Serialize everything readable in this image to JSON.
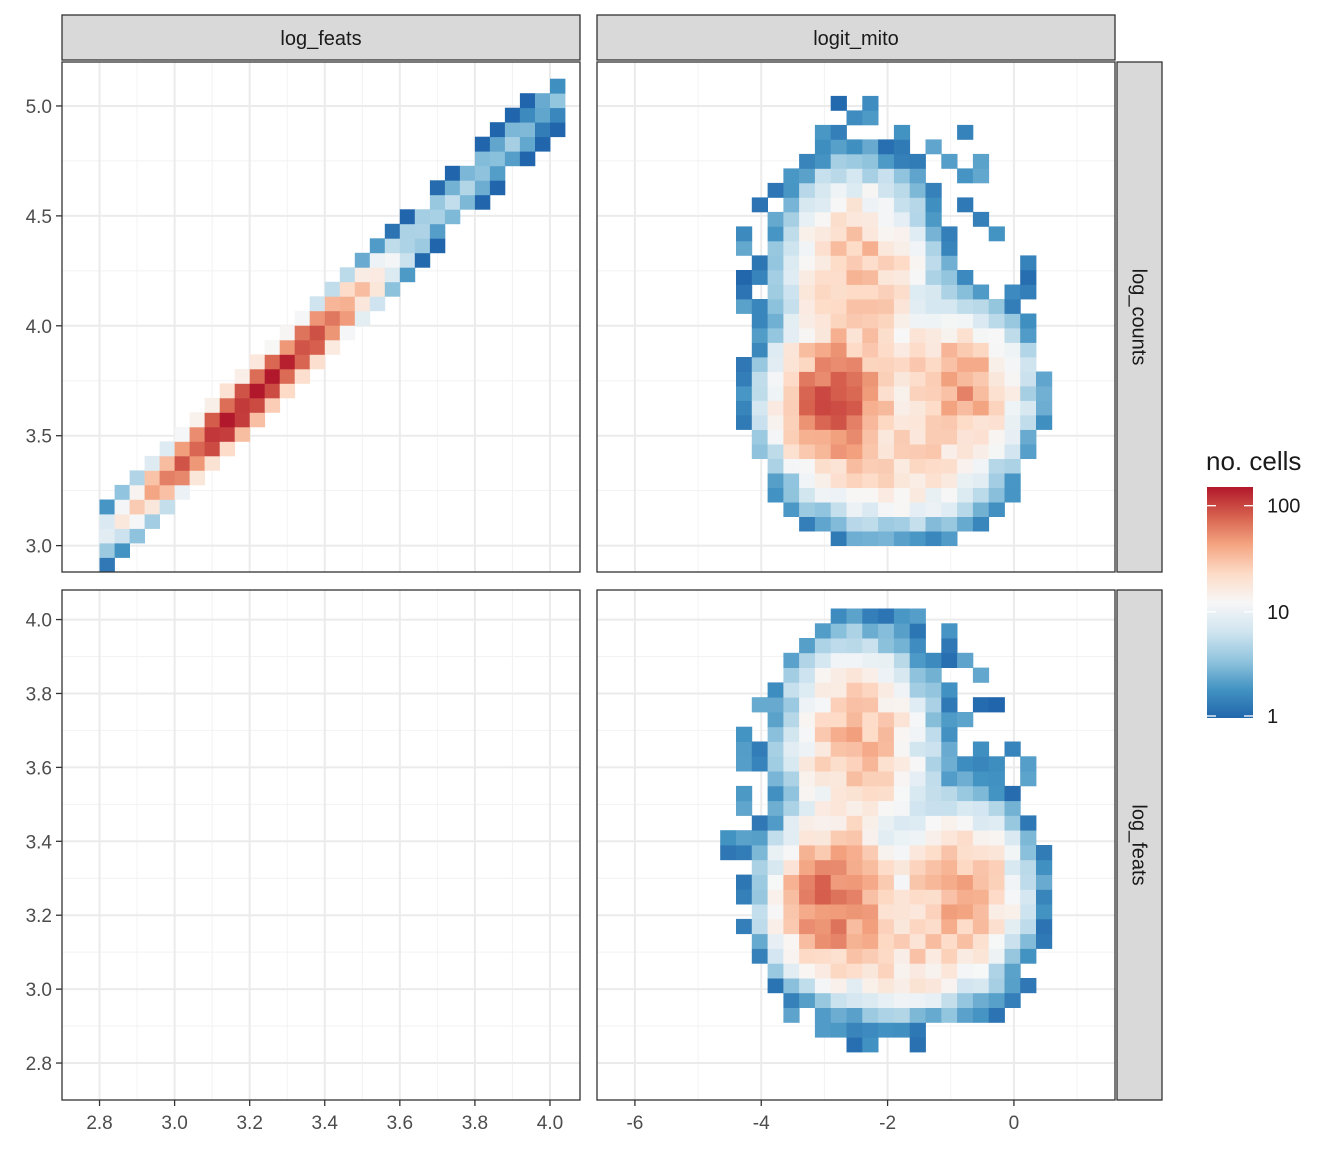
{
  "chart_data": {
    "type": "heatmap",
    "layout": "facet-grid",
    "legend": {
      "title": "no. cells",
      "scale": "log10",
      "limits": [
        1,
        150
      ],
      "breaks": [
        1,
        10,
        100
      ],
      "break_labels": [
        "1",
        "10",
        "100"
      ],
      "palette": [
        "#2166ac",
        "#4393c3",
        "#92c5de",
        "#d1e5f0",
        "#f7f7f7",
        "#fddbc7",
        "#f4a582",
        "#d6604d",
        "#b2182b"
      ],
      "position": "right"
    },
    "columns": [
      {
        "label": "log_feats",
        "xlim": [
          2.7,
          4.08
        ],
        "ticks": [
          2.8,
          3.0,
          3.2,
          3.4,
          3.6,
          3.8,
          4.0
        ],
        "tick_labels": [
          "2.8",
          "3.0",
          "3.2",
          "3.4",
          "3.6",
          "3.8",
          "4.0"
        ]
      },
      {
        "label": "logit_mito",
        "xlim": [
          -6.6,
          1.6
        ],
        "ticks": [
          -6,
          -4,
          -2,
          0
        ],
        "tick_labels": [
          "-6",
          "-4",
          "-2",
          "0"
        ]
      }
    ],
    "rows": [
      {
        "label": "log_counts",
        "ylim": [
          2.88,
          5.2
        ],
        "ticks": [
          3.0,
          3.5,
          4.0,
          4.5,
          5.0
        ],
        "tick_labels": [
          "3.0",
          "3.5",
          "4.0",
          "4.5",
          "5.0"
        ]
      },
      {
        "label": "log_feats",
        "ylim": [
          2.7,
          4.08
        ],
        "ticks": [
          2.8,
          3.0,
          3.2,
          3.4,
          3.6,
          3.8,
          4.0
        ],
        "tick_labels": [
          "2.8",
          "3.0",
          "3.2",
          "3.4",
          "3.6",
          "3.8",
          "4.0"
        ]
      }
    ],
    "panels": [
      {
        "row": 0,
        "col": 0,
        "empty": false,
        "description": "log_counts vs log_feats — tight diagonal band",
        "bin_width": [
          0.04,
          0.066
        ],
        "ridge": {
          "x0": 2.8,
          "y0": 3.0,
          "x1": 4.0,
          "y1": 5.0,
          "spread": 0.07,
          "peak": [
            3.22,
            3.62
          ],
          "peak_count": 150
        }
      },
      {
        "row": 0,
        "col": 1,
        "empty": false,
        "description": "log_counts vs logit_mito — broad cloud with two dense lobes",
        "bin_width": [
          0.25,
          0.066
        ],
        "lobes": [
          {
            "x": -3.0,
            "y": 3.62,
            "sx": 0.5,
            "sy": 0.16,
            "count": 80
          },
          {
            "x": -1.0,
            "y": 3.68,
            "sx": 0.55,
            "sy": 0.18,
            "count": 45
          },
          {
            "x": -2.6,
            "y": 4.2,
            "sx": 0.6,
            "sy": 0.25,
            "count": 35
          },
          {
            "x": -2.0,
            "y": 3.3,
            "sx": 0.8,
            "sy": 0.15,
            "count": 20
          }
        ],
        "extent": {
          "x": [
            -6.4,
            1.1
          ],
          "y": [
            3.0,
            5.0
          ]
        }
      },
      {
        "row": 1,
        "col": 0,
        "empty": true
      },
      {
        "row": 1,
        "col": 1,
        "empty": false,
        "description": "log_feats vs logit_mito — broad cloud with two dense lobes",
        "bin_width": [
          0.25,
          0.04
        ],
        "lobes": [
          {
            "x": -3.0,
            "y": 3.23,
            "sx": 0.5,
            "sy": 0.1,
            "count": 75
          },
          {
            "x": -1.0,
            "y": 3.25,
            "sx": 0.55,
            "sy": 0.12,
            "count": 40
          },
          {
            "x": -2.6,
            "y": 3.65,
            "sx": 0.6,
            "sy": 0.14,
            "count": 35
          },
          {
            "x": -2.0,
            "y": 3.05,
            "sx": 0.8,
            "sy": 0.08,
            "count": 18
          }
        ],
        "extent": {
          "x": [
            -6.4,
            1.1
          ],
          "y": [
            2.83,
            4.0
          ]
        }
      }
    ]
  }
}
